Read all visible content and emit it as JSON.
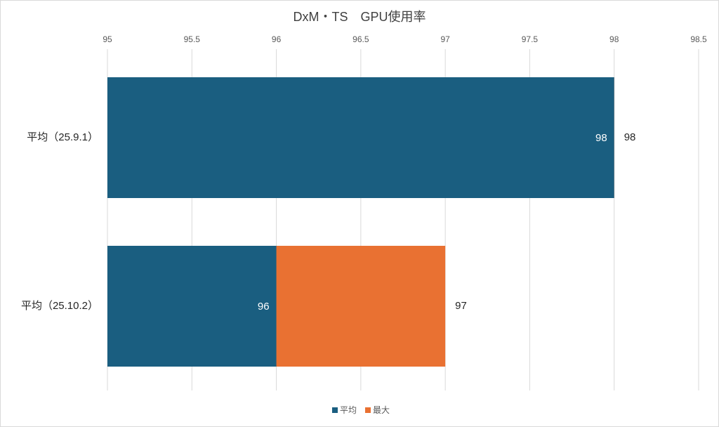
{
  "chart_data": {
    "type": "bar",
    "orientation": "horizontal",
    "title": "DxM・TS　GPU使用率",
    "categories": [
      "平均（25.9.1）",
      "平均（25.10.2）"
    ],
    "series": [
      {
        "name": "平均",
        "color": "#1a5e80",
        "values": [
          98,
          96
        ]
      },
      {
        "name": "最大",
        "color": "#e97132",
        "values": [
          98,
          97
        ]
      }
    ],
    "xlim": [
      95,
      98.5
    ],
    "xticks": [
      95,
      95.5,
      96,
      96.5,
      97,
      97.5,
      98,
      98.5
    ],
    "grid": true,
    "legend": "bottom"
  }
}
